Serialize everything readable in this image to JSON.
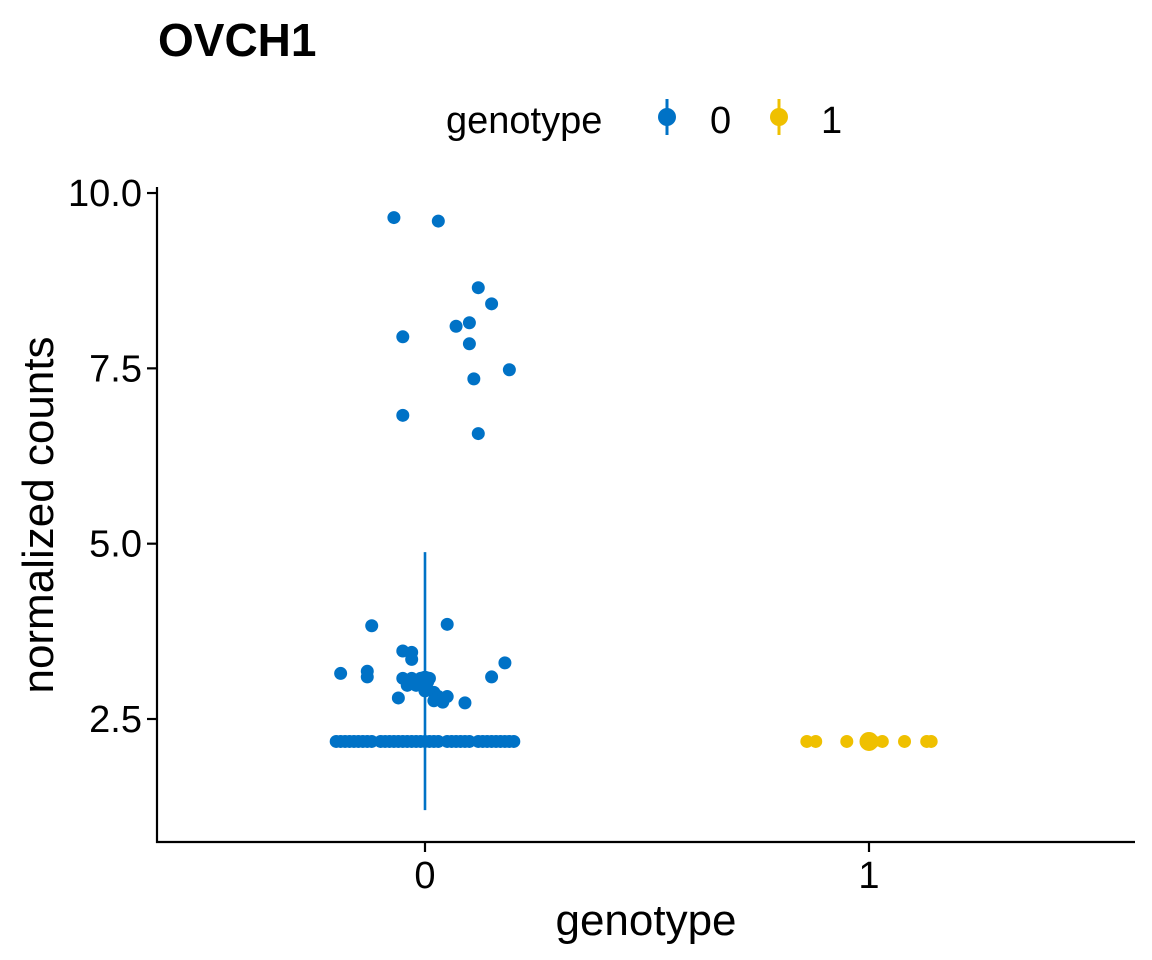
{
  "chart_data": {
    "type": "scatter",
    "title": "OVCH1",
    "xlabel": "genotype",
    "ylabel": "normalized counts",
    "categories": [
      "0",
      "1"
    ],
    "ylim": [
      0.9,
      10.15
    ],
    "yticks": [
      "2.5",
      "5.0",
      "7.5",
      "10.0"
    ],
    "grid": false,
    "legend": {
      "title": "genotype",
      "position": "top",
      "entries": [
        "0",
        "1"
      ]
    },
    "colors": {
      "0": "#0072c6",
      "1": "#efc000"
    },
    "series": [
      {
        "name": "0",
        "category": "0",
        "summary": {
          "mean": 3.05,
          "lower": 1.2,
          "upper": 4.88
        },
        "points": [
          [
            -0.07,
            9.65
          ],
          [
            0.03,
            9.6
          ],
          [
            0.12,
            8.65
          ],
          [
            0.15,
            8.42
          ],
          [
            0.1,
            8.15
          ],
          [
            0.07,
            8.1
          ],
          [
            -0.05,
            7.95
          ],
          [
            0.1,
            7.85
          ],
          [
            0.19,
            7.48
          ],
          [
            0.11,
            7.35
          ],
          [
            -0.05,
            6.83
          ],
          [
            0.12,
            6.57
          ],
          [
            0.05,
            3.85
          ],
          [
            -0.12,
            3.83
          ],
          [
            -0.05,
            3.47
          ],
          [
            -0.03,
            3.45
          ],
          [
            -0.03,
            3.35
          ],
          [
            0.18,
            3.3
          ],
          [
            -0.13,
            3.18
          ],
          [
            -0.19,
            3.15
          ],
          [
            0.15,
            3.1
          ],
          [
            -0.13,
            3.1
          ],
          [
            -0.05,
            3.08
          ],
          [
            -0.03,
            3.08
          ],
          [
            -0.01,
            3.08
          ],
          [
            0.01,
            3.08
          ],
          [
            -0.04,
            2.98
          ],
          [
            -0.02,
            2.98
          ],
          [
            0.0,
            2.9
          ],
          [
            0.02,
            2.88
          ],
          [
            0.03,
            2.82
          ],
          [
            0.05,
            2.82
          ],
          [
            -0.06,
            2.8
          ],
          [
            0.02,
            2.76
          ],
          [
            0.04,
            2.74
          ],
          [
            0.09,
            2.73
          ],
          [
            -0.2,
            2.18
          ],
          [
            -0.19,
            2.18
          ],
          [
            -0.18,
            2.18
          ],
          [
            -0.17,
            2.18
          ],
          [
            -0.16,
            2.18
          ],
          [
            -0.15,
            2.18
          ],
          [
            -0.14,
            2.18
          ],
          [
            -0.13,
            2.18
          ],
          [
            -0.12,
            2.18
          ],
          [
            -0.1,
            2.18
          ],
          [
            -0.09,
            2.18
          ],
          [
            -0.08,
            2.18
          ],
          [
            -0.07,
            2.18
          ],
          [
            -0.06,
            2.18
          ],
          [
            -0.05,
            2.18
          ],
          [
            -0.04,
            2.18
          ],
          [
            -0.03,
            2.18
          ],
          [
            -0.02,
            2.18
          ],
          [
            -0.01,
            2.18
          ],
          [
            0.0,
            2.18
          ],
          [
            0.01,
            2.18
          ],
          [
            0.02,
            2.18
          ],
          [
            0.03,
            2.18
          ],
          [
            0.05,
            2.18
          ],
          [
            0.06,
            2.18
          ],
          [
            0.07,
            2.18
          ],
          [
            0.08,
            2.18
          ],
          [
            0.09,
            2.18
          ],
          [
            0.1,
            2.18
          ],
          [
            0.12,
            2.18
          ],
          [
            0.13,
            2.18
          ],
          [
            0.14,
            2.18
          ],
          [
            0.15,
            2.18
          ],
          [
            0.16,
            2.18
          ],
          [
            0.17,
            2.18
          ],
          [
            0.18,
            2.18
          ],
          [
            0.19,
            2.18
          ],
          [
            0.2,
            2.18
          ]
        ]
      },
      {
        "name": "1",
        "category": "1",
        "summary": {
          "mean": 2.18,
          "lower": 2.18,
          "upper": 2.18
        },
        "points": [
          [
            -0.14,
            2.18
          ],
          [
            -0.12,
            2.18
          ],
          [
            -0.05,
            2.18
          ],
          [
            0.01,
            2.18
          ],
          [
            0.03,
            2.18
          ],
          [
            0.08,
            2.18
          ],
          [
            0.13,
            2.18
          ],
          [
            0.14,
            2.18
          ]
        ]
      }
    ]
  }
}
